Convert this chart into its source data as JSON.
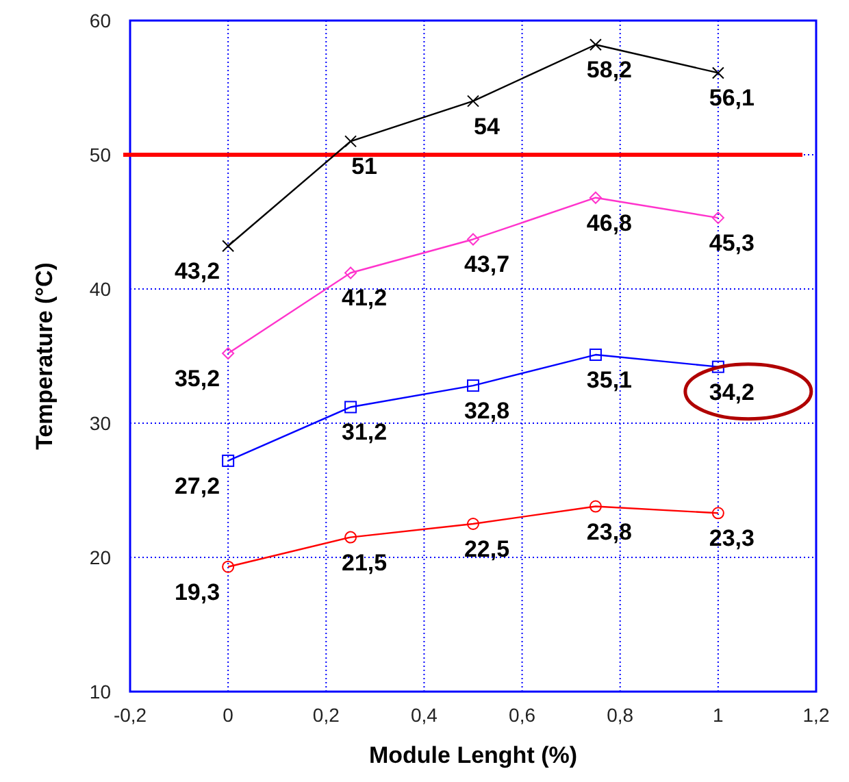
{
  "chart_data": {
    "type": "line",
    "xlabel": "Module Lenght (%)",
    "ylabel": "Temperature (°C)",
    "x": [
      0,
      0.25,
      0.5,
      0.75,
      1
    ],
    "series": [
      {
        "color": "#000000",
        "marker": "cross",
        "values": [
          43.2,
          51,
          54,
          58.2,
          56.1
        ],
        "value_labels": [
          "43,2",
          "51",
          "54",
          "58,2",
          "56,1"
        ]
      },
      {
        "color": "#ff33cc",
        "marker": "diamond",
        "values": [
          35.2,
          41.2,
          43.7,
          46.8,
          45.3
        ],
        "value_labels": [
          "35,2",
          "41,2",
          "43,7",
          "46,8",
          "45,3"
        ]
      },
      {
        "color": "#0000ff",
        "marker": "square",
        "values": [
          27.2,
          31.2,
          32.8,
          35.1,
          34.2
        ],
        "value_labels": [
          "27,2",
          "31,2",
          "32,8",
          "35,1",
          "34,2"
        ]
      },
      {
        "color": "#ff0000",
        "marker": "circle",
        "values": [
          19.3,
          21.5,
          22.5,
          23.8,
          23.3
        ],
        "value_labels": [
          "19,3",
          "21,5",
          "22,5",
          "23,8",
          "23,3"
        ]
      }
    ],
    "xlim": [
      -0.2,
      1.2
    ],
    "xticks": [
      {
        "value": -0.2,
        "label": "-0,2"
      },
      0,
      {
        "value": 0.2,
        "label": "0,2"
      },
      {
        "value": 0.4,
        "label": "0,4"
      },
      {
        "value": 0.6,
        "label": "0,6"
      },
      {
        "value": 0.8,
        "label": "0,8"
      },
      1,
      {
        "value": 1.2,
        "label": "1,2"
      }
    ],
    "ylim": [
      10,
      60
    ],
    "yticks": [
      10,
      20,
      30,
      40,
      50,
      60
    ],
    "grid": true,
    "ref_lines": [
      {
        "axis": "y",
        "value": 50,
        "color": "#ff0000"
      }
    ]
  }
}
